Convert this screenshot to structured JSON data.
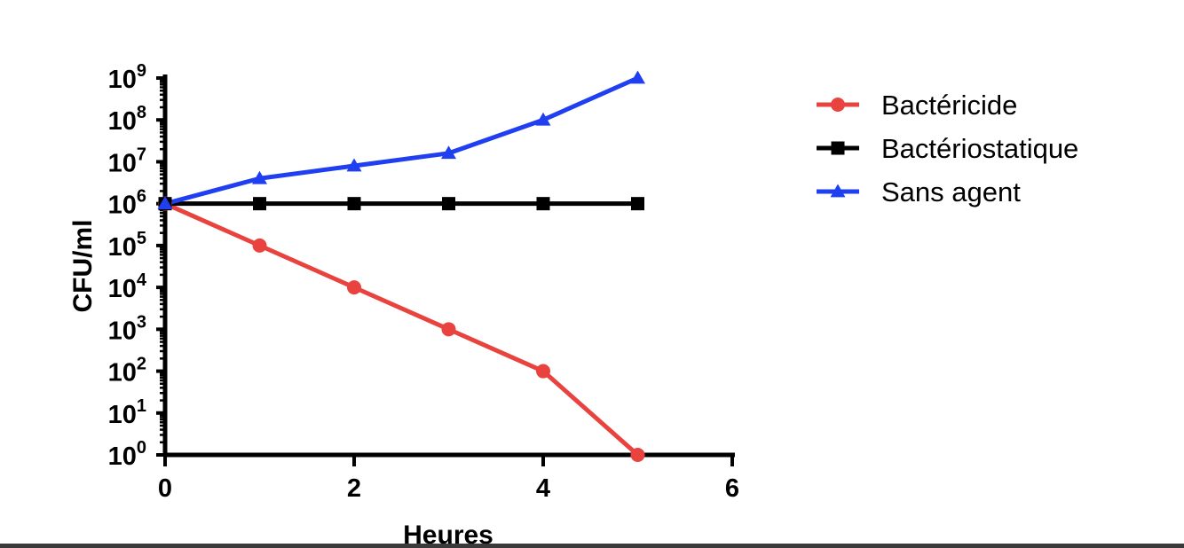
{
  "chart_data": {
    "type": "line",
    "title": "",
    "xlabel": "Heures",
    "ylabel": "CFU/ml",
    "x_ticks": [
      "0",
      "2",
      "4",
      "6"
    ],
    "xlim": [
      0,
      6
    ],
    "y_scale": "log10",
    "ylim": [
      1,
      1000000000
    ],
    "y_tick_base": "10",
    "y_tick_exponents": [
      "0",
      "1",
      "2",
      "3",
      "4",
      "5",
      "6",
      "7",
      "8",
      "9"
    ],
    "grid": false,
    "legend_position": "top-right",
    "series": [
      {
        "name": "Bactéricide",
        "color": "#e8433f",
        "marker": "circle",
        "x": [
          0,
          1,
          2,
          3,
          4,
          5
        ],
        "y": [
          1000000,
          100000,
          10000,
          1000,
          100,
          1
        ]
      },
      {
        "name": "Bactériostatique",
        "color": "#000000",
        "marker": "square",
        "x": [
          0,
          1,
          2,
          3,
          4,
          5
        ],
        "y": [
          1000000,
          1000000,
          1000000,
          1000000,
          1000000,
          1000000
        ]
      },
      {
        "name": "Sans agent",
        "color": "#1f3ff0",
        "marker": "triangle",
        "x": [
          0,
          1,
          2,
          3,
          4,
          5
        ],
        "y": [
          1000000,
          4000000,
          8000000,
          16000000,
          100000000,
          1000000000
        ]
      }
    ]
  }
}
